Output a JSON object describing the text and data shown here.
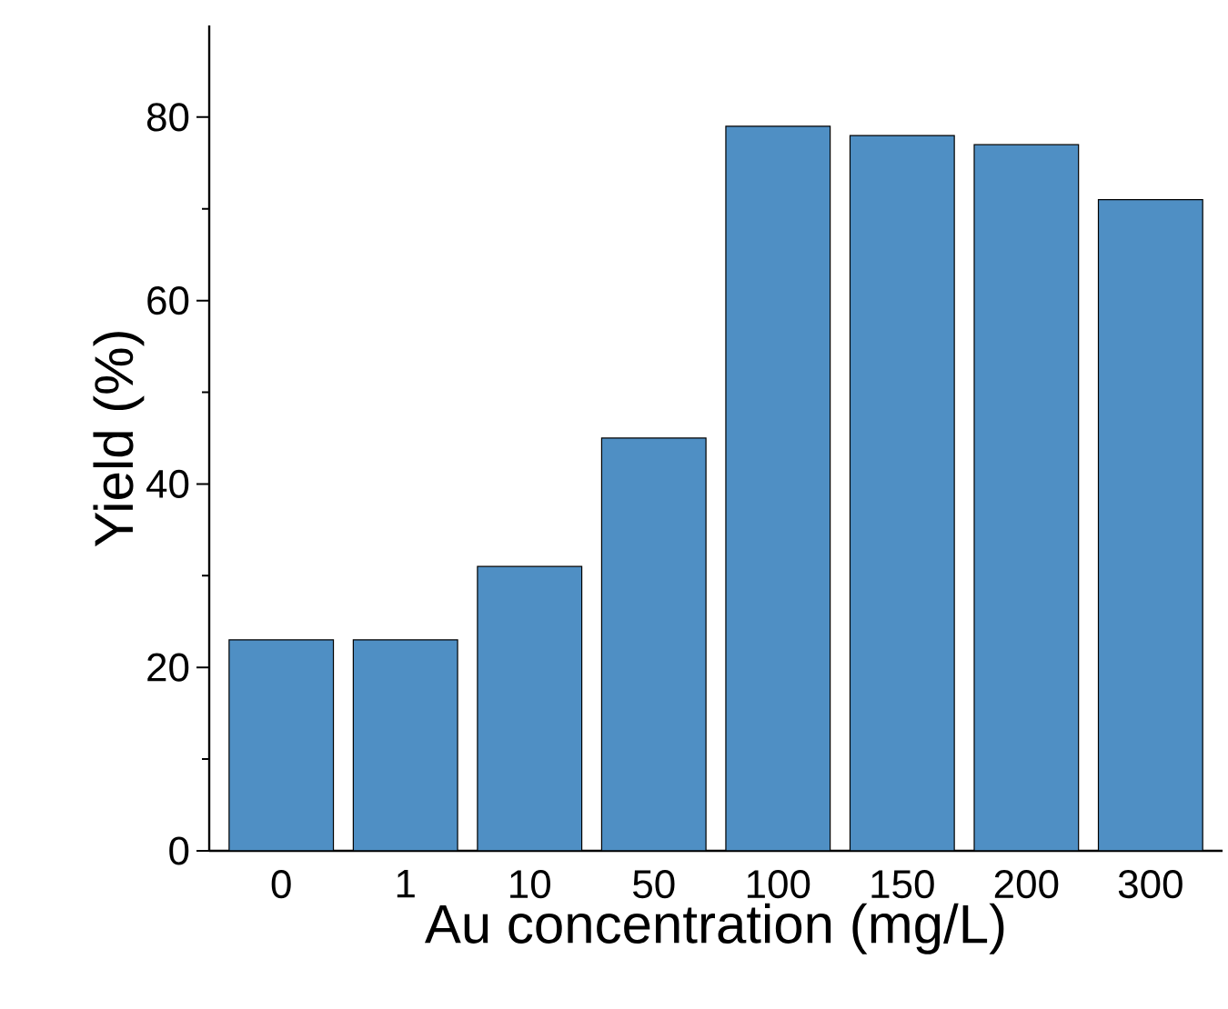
{
  "chart_data": {
    "type": "bar",
    "xlabel": "Au concentration (mg/L)",
    "ylabel": "Yield (%)",
    "categories": [
      "0",
      "1",
      "10",
      "50",
      "100",
      "150",
      "200",
      "300"
    ],
    "values": [
      23,
      23,
      31,
      45,
      79,
      78,
      77,
      71
    ],
    "color": "#4f8fc4",
    "ylim": [
      0,
      90
    ],
    "yticks": [
      0,
      20,
      40,
      60,
      80
    ],
    "grid": false
  }
}
